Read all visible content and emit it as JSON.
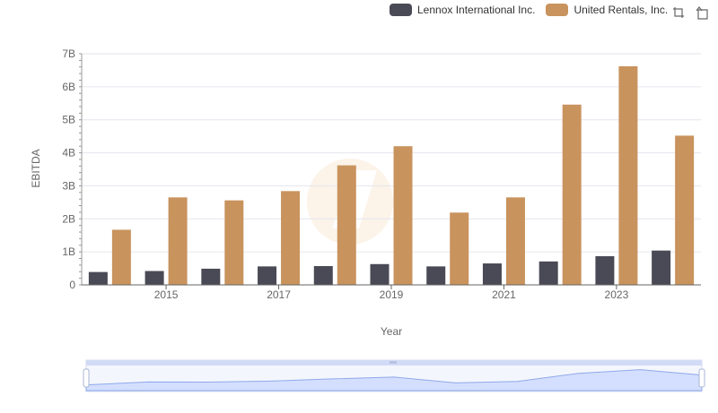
{
  "legend": {
    "items": [
      {
        "label": "Lennox International Inc.",
        "color": "#4a4a56"
      },
      {
        "label": "United Rentals, Inc.",
        "color": "#c9935e"
      }
    ]
  },
  "toolbox": {
    "icons": [
      "zoom-icon",
      "restore-icon"
    ]
  },
  "chart_data": {
    "type": "bar",
    "xlabel": "Year",
    "ylabel": "EBITDA",
    "ylim": [
      0,
      7000000000
    ],
    "y_ticks": [
      "0",
      "1B",
      "2B",
      "3B",
      "4B",
      "5B",
      "6B",
      "7B"
    ],
    "categories": [
      "2014",
      "2015",
      "2016",
      "2017",
      "2018",
      "2019",
      "2020",
      "2021",
      "2022",
      "2023",
      "2024"
    ],
    "x_tick_labels": [
      "2015",
      "2017",
      "2019",
      "2021",
      "2023"
    ],
    "grid": true,
    "legend_position": "top-right",
    "series": [
      {
        "name": "Lennox International Inc.",
        "color": "#4a4a56",
        "values": [
          390000000,
          420000000,
          490000000,
          560000000,
          570000000,
          630000000,
          560000000,
          650000000,
          710000000,
          870000000,
          1040000000
        ]
      },
      {
        "name": "United Rentals, Inc.",
        "color": "#c9935e",
        "values": [
          1670000000,
          2650000000,
          2560000000,
          2840000000,
          3620000000,
          4200000000,
          2190000000,
          2650000000,
          5460000000,
          6620000000,
          4520000000
        ]
      }
    ]
  }
}
